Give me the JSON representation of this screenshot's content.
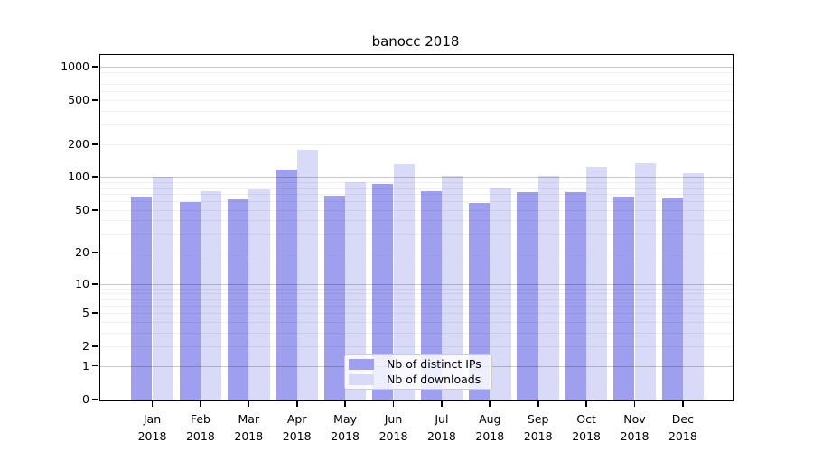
{
  "chart_data": {
    "type": "bar",
    "title": "banocc 2018",
    "x_axis": {
      "months": [
        "Jan",
        "Feb",
        "Mar",
        "Apr",
        "May",
        "Jun",
        "Jul",
        "Aug",
        "Sep",
        "Oct",
        "Nov",
        "Dec"
      ],
      "year": "2018"
    },
    "y_axis": {
      "ticks": [
        0,
        1,
        2,
        5,
        10,
        20,
        50,
        100,
        200,
        500,
        1000
      ],
      "scale": "log10(value+1)",
      "range": [
        0,
        1270
      ],
      "grid": true
    },
    "series": [
      {
        "name": "Nb of distinct IPs",
        "color": "#9f9ff0",
        "values": [
          66,
          59,
          63,
          117,
          67,
          87,
          75,
          58,
          73,
          73,
          66,
          64
        ]
      },
      {
        "name": "Nb of downloads",
        "color": "#d9d9f8",
        "values": [
          100,
          74,
          77,
          176,
          90,
          130,
          103,
          80,
          103,
          125,
          135,
          109
        ]
      }
    ],
    "legend": {
      "position": "lower-center"
    }
  }
}
